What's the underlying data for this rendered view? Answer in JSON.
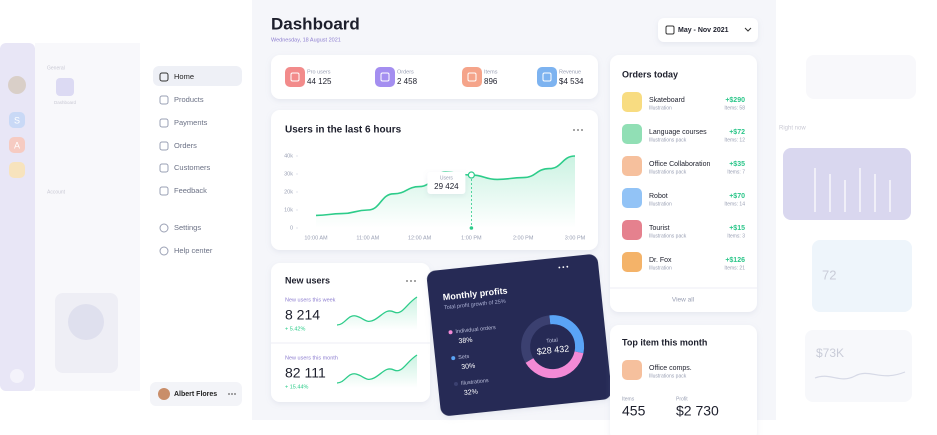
{
  "faded_left": {
    "general": "General",
    "dashboard": "Dashboard",
    "account": "Account",
    "rail_letters": [
      "S",
      "A"
    ]
  },
  "nav": {
    "items": [
      "Home",
      "Products",
      "Payments",
      "Orders",
      "Customers",
      "Feedback"
    ],
    "bottom_items": [
      "Settings",
      "Help center"
    ],
    "user": "Albert Flores"
  },
  "header": {
    "title": "Dashboard",
    "date": "Wednesday, 18 August 2021",
    "range": "May - Nov 2021"
  },
  "stats": [
    {
      "label": "Pro users",
      "value": "44 125",
      "color": "#f28b8b"
    },
    {
      "label": "Orders",
      "value": "2 458",
      "color": "#a48ef0"
    },
    {
      "label": "Items",
      "value": "896",
      "color": "#f5a48a"
    },
    {
      "label": "Revenue",
      "value": "$4 534",
      "color": "#7db3f0"
    }
  ],
  "users_chart": {
    "type": "line",
    "title": "Users in the last 6 hours",
    "color": "#2dcc8a",
    "categories": [
      "10:00 AM",
      null,
      "11:00 AM",
      null,
      "12:00 AM",
      null,
      "1:00 PM",
      null,
      "2:00 PM",
      null,
      "3:00 PM"
    ],
    "values": [
      7000,
      8000,
      10000,
      19000,
      23000,
      31000,
      29424,
      27000,
      28000,
      33000,
      40000
    ],
    "ylim": [
      0,
      40000
    ],
    "yticks": [
      0,
      {
        "value": 10000,
        "label": "10k"
      },
      {
        "value": 20000,
        "label": "20k"
      },
      {
        "value": 30000,
        "label": "30k"
      },
      {
        "value": 40000,
        "label": "40k"
      }
    ],
    "tooltip": {
      "label": "Users",
      "value": "29 424"
    }
  },
  "new_users": {
    "title": "New users",
    "week_label": "New users this week",
    "week_value": "8 214",
    "week_change": "+ 5.42%",
    "month_label": "New users this month",
    "month_value": "82 111",
    "month_change": "+ 15.44%"
  },
  "profits": {
    "type": "donut",
    "title": "Monthly profits",
    "subtitle": "Total profit growth of 25%",
    "categories": [
      "Individual orders",
      "Sets",
      "Illustrations"
    ],
    "values": [
      38,
      30,
      32
    ],
    "value_labels": [
      "38%",
      "30%",
      "32%"
    ],
    "colors": [
      "#f38ad6",
      "#5aa4f6",
      "#3b4070"
    ],
    "total_label": "Total",
    "total": "$28 432"
  },
  "orders": {
    "title": "Orders today",
    "view_all": "View all",
    "rows": [
      {
        "name": "Skateboard",
        "type": "Illustration",
        "amount": "+$290",
        "items": "Items: 58",
        "color": "#f7d66b"
      },
      {
        "name": "Language courses",
        "type": "Illustrations pack",
        "amount": "+$72",
        "items": "Items: 12",
        "color": "#7ed9a8"
      },
      {
        "name": "Office Collaboration",
        "type": "Illustrations pack",
        "amount": "+$35",
        "items": "Items: 7",
        "color": "#f5b58c"
      },
      {
        "name": "Robot",
        "type": "Illustration",
        "amount": "+$70",
        "items": "Items: 14",
        "color": "#7fb8f5"
      },
      {
        "name": "Tourist",
        "type": "Illustrations pack",
        "amount": "+$15",
        "items": "Items: 3",
        "color": "#e06b7a"
      },
      {
        "name": "Dr. Fox",
        "type": "Illustration",
        "amount": "+$126",
        "items": "Items: 21",
        "color": "#f2a64f"
      }
    ]
  },
  "top_item": {
    "title": "Top item this month",
    "name": "Office comps.",
    "type": "Illustrations pack",
    "items_label": "Items",
    "items": "455",
    "profit_label": "Profit",
    "profit": "$2 730"
  },
  "faded_right": {
    "right_now": "Right now",
    "count": "72",
    "amount": "$73K"
  }
}
